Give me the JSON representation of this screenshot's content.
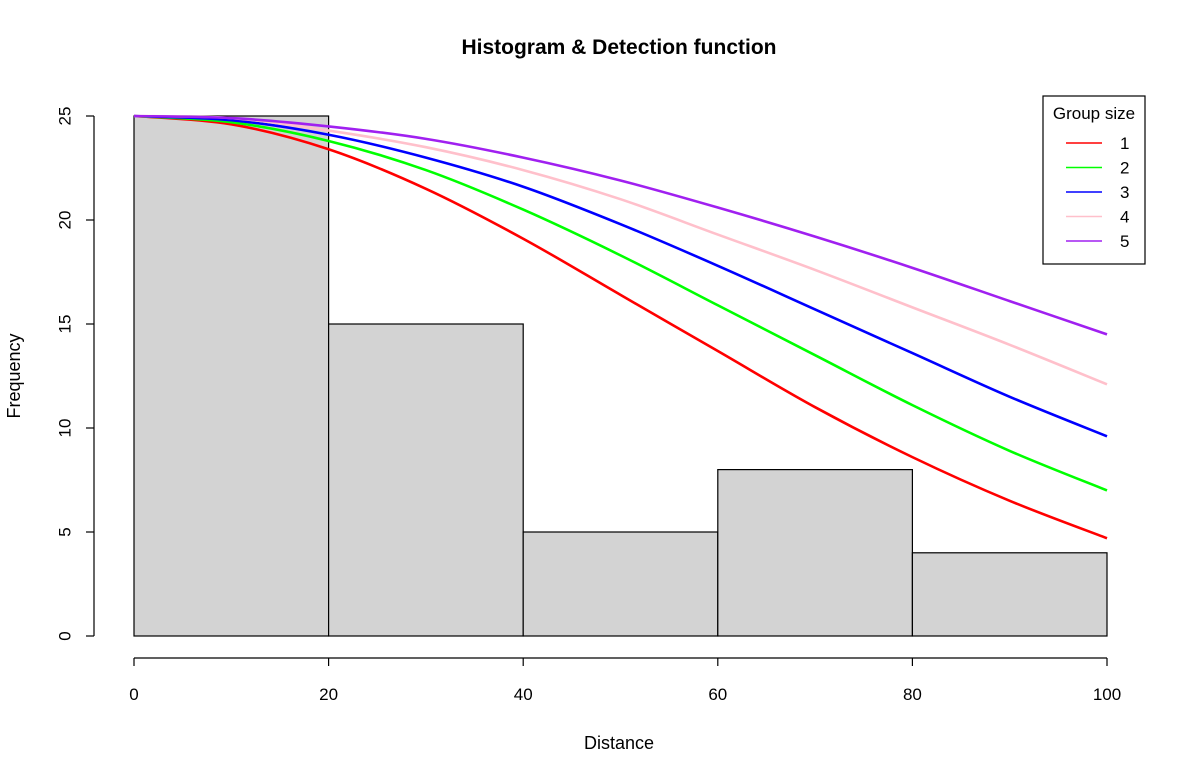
{
  "chart_data": {
    "type": "bar",
    "title": "Histogram & Detection function",
    "xlabel": "Distance",
    "ylabel": "Frequency",
    "xlim": [
      0,
      100
    ],
    "ylim": [
      0,
      25
    ],
    "x_ticks": [
      0,
      20,
      40,
      60,
      80,
      100
    ],
    "y_ticks": [
      0,
      5,
      10,
      15,
      20,
      25
    ],
    "bins": [
      {
        "from": 0,
        "to": 20,
        "value": 25
      },
      {
        "from": 20,
        "to": 40,
        "value": 15
      },
      {
        "from": 40,
        "to": 60,
        "value": 5
      },
      {
        "from": 60,
        "to": 80,
        "value": 8
      },
      {
        "from": 80,
        "to": 100,
        "value": 4
      }
    ],
    "bar_color": "#d3d3d3",
    "legend": {
      "title": "Group size",
      "position": "top-right"
    },
    "series": [
      {
        "name": "1",
        "color": "#ff0000",
        "x": [
          0,
          10,
          20,
          30,
          40,
          50,
          60,
          70,
          80,
          90,
          100
        ],
        "y": [
          25,
          24.6,
          23.4,
          21.5,
          19.1,
          16.4,
          13.7,
          11.0,
          8.6,
          6.5,
          4.7
        ]
      },
      {
        "name": "2",
        "color": "#00ff00",
        "x": [
          0,
          10,
          20,
          30,
          40,
          50,
          60,
          70,
          80,
          90,
          100
        ],
        "y": [
          25,
          24.7,
          23.8,
          22.4,
          20.5,
          18.3,
          15.9,
          13.5,
          11.1,
          8.9,
          7.0
        ]
      },
      {
        "name": "3",
        "color": "#0000ff",
        "x": [
          0,
          10,
          20,
          30,
          40,
          50,
          60,
          70,
          80,
          90,
          100
        ],
        "y": [
          25,
          24.8,
          24.1,
          23.0,
          21.6,
          19.8,
          17.8,
          15.7,
          13.6,
          11.5,
          9.6
        ]
      },
      {
        "name": "4",
        "color": "#ffc0cb",
        "x": [
          0,
          10,
          20,
          30,
          40,
          50,
          60,
          70,
          80,
          90,
          100
        ],
        "y": [
          25,
          24.9,
          24.3,
          23.5,
          22.4,
          21.0,
          19.3,
          17.6,
          15.8,
          14.0,
          12.1
        ]
      },
      {
        "name": "5",
        "color": "#a020f0",
        "x": [
          0,
          10,
          20,
          30,
          40,
          50,
          60,
          70,
          80,
          90,
          100
        ],
        "y": [
          25,
          24.9,
          24.5,
          23.9,
          23.0,
          21.9,
          20.6,
          19.2,
          17.7,
          16.1,
          14.5
        ]
      }
    ]
  }
}
